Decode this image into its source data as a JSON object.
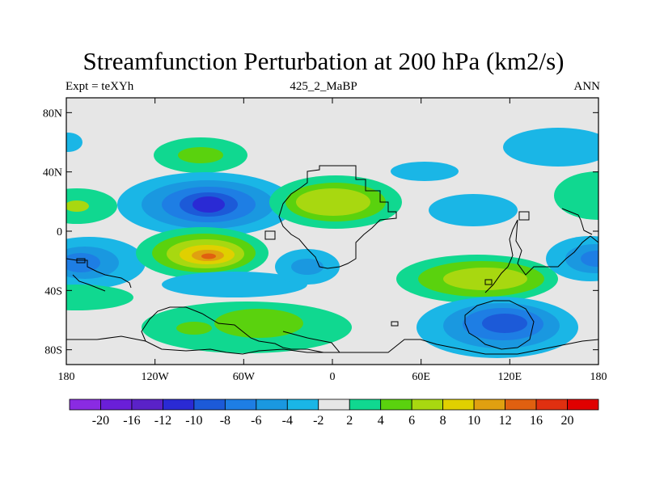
{
  "title": "Streamfunction Perturbation at 200 hPa (km2/s)",
  "subtitle_left": "Expt = teXYh",
  "subtitle_center": "425_2_MaBP",
  "subtitle_right": "ANN",
  "y_ticks": [
    {
      "lat": 80,
      "label": "80N"
    },
    {
      "lat": 40,
      "label": "40N"
    },
    {
      "lat": 0,
      "label": "0"
    },
    {
      "lat": -40,
      "label": "40S"
    },
    {
      "lat": -80,
      "label": "80S"
    }
  ],
  "x_ticks": [
    {
      "lon": -180,
      "label": "180"
    },
    {
      "lon": -120,
      "label": "120W"
    },
    {
      "lon": -60,
      "label": "60W"
    },
    {
      "lon": 0,
      "label": "0"
    },
    {
      "lon": 60,
      "label": "60E"
    },
    {
      "lon": 120,
      "label": "120E"
    },
    {
      "lon": 180,
      "label": "180"
    }
  ],
  "colorbar": {
    "colors": [
      "#8a2be2",
      "#6a1fd8",
      "#5a22c8",
      "#2a2ad4",
      "#1c5ad8",
      "#1e7ee4",
      "#1a98e0",
      "#1ab6e6",
      "#e6e6e6",
      "#10d890",
      "#5ad20e",
      "#a8d810",
      "#e0d000",
      "#e0a010",
      "#e06010",
      "#e03010",
      "#e00000"
    ],
    "labels": [
      "-20",
      "-16",
      "-12",
      "-10",
      "-8",
      "-6",
      "-4",
      "-2",
      "2",
      "4",
      "6",
      "8",
      "10",
      "12",
      "16",
      "20"
    ]
  }
}
